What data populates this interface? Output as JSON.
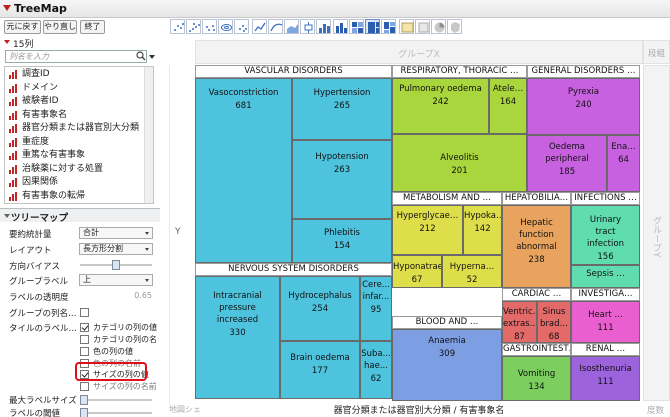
{
  "window": {
    "title": "TreeMap"
  },
  "toolbar": {
    "buttons": [
      "元に戻す",
      "やり直し",
      "終了"
    ]
  },
  "columns_panel": {
    "count_label": "15列",
    "filter_placeholder": "列名を入力",
    "items": [
      "調査ID",
      "ドメイン",
      "被験者ID",
      "有害事象名",
      "器官分類または器官別大分類",
      "重症度",
      "重篤な有害事象",
      "治験薬に対する処置",
      "因果関係",
      "有害事象の転帰"
    ]
  },
  "treemap_panel": {
    "title": "ツリーマップ",
    "summary_label": "要約統計量",
    "summary_value": "合計",
    "layout_label": "レイアウト",
    "layout_value": "長方形分割",
    "bias_label": "方向バイアス",
    "bias_level": 0.5,
    "group_label_label": "グループラベル",
    "group_label_value": "上",
    "transparency_label": "ラベルの透明度",
    "transparency_value": "0.65",
    "group_colname_label": "グループの列名…",
    "tile_label_label": "タイルのラベル…",
    "options": [
      {
        "label": "カテゴリの列の値",
        "checked": true
      },
      {
        "label": "カテゴリの列の名",
        "checked": false
      },
      {
        "label": "色の列の値",
        "checked": false
      },
      {
        "label": "色の列の名前",
        "checked": false
      },
      {
        "label": "サイズの列の値",
        "checked": true
      },
      {
        "label": "サイズの列の名前",
        "checked": false
      }
    ],
    "max_label_size_label": "最大ラベルサイズ",
    "label_threshold_label": "ラベルの閾値"
  },
  "graph": {
    "group_x_label": "グループX",
    "wrap_label": "段組",
    "y_label": "Y",
    "group_y_label": "グループY",
    "x_axis_label": "器官分類または器官別大分類 / 有害事象名",
    "freq_label": "度数",
    "map_label": "地図シェ"
  },
  "colors": {
    "vascular": "#4ec3de",
    "nervous": "#4ec3de",
    "respiratory": "#a9d63c",
    "general": "#c861e0",
    "metabolism": "#dede4a",
    "hepatobiliary": "#e8a35e",
    "infections": "#5fdcb0",
    "cardiac": "#e46a6a",
    "investigations": "#ea5fcf",
    "blood": "#7e9ee4",
    "renal": "#9d63dc",
    "gastrointestinal": "#7ccf5e"
  },
  "chart_data": {
    "type": "treemap",
    "groups": [
      {
        "name": "VASCULAR DISORDERS",
        "tiles": [
          {
            "name": "Vasoconstriction",
            "value": 681
          },
          {
            "name": "Hypertension",
            "value": 265
          },
          {
            "name": "Hypotension",
            "value": 263
          },
          {
            "name": "Phlebitis",
            "value": 154
          }
        ]
      },
      {
        "name": "NERVOUS SYSTEM DISORDERS",
        "tiles": [
          {
            "name": "Intracranial pressure increased",
            "value": 330
          },
          {
            "name": "Hydrocephalus",
            "value": 254
          },
          {
            "name": "Cere... infar...",
            "value": 95
          },
          {
            "name": "Brain oedema",
            "value": 177
          },
          {
            "name": "Suba... hae...",
            "value": 62
          }
        ]
      },
      {
        "name": "RESPIRATORY, THORACIC …",
        "tiles": [
          {
            "name": "Pulmonary oedema",
            "value": 242
          },
          {
            "name": "Atele…",
            "value": 164
          },
          {
            "name": "Alveolitis",
            "value": 201
          }
        ]
      },
      {
        "name": "GENERAL DISORDERS …",
        "tiles": [
          {
            "name": "Pyrexia",
            "value": 240
          },
          {
            "name": "Oedema peripheral",
            "value": 185
          },
          {
            "name": "Ena…",
            "value": 64
          }
        ]
      },
      {
        "name": "METABOLISM AND …",
        "tiles": [
          {
            "name": "Hyperglycae…",
            "value": 212
          },
          {
            "name": "Hypoka…",
            "value": 142
          },
          {
            "name": "Hyponatrae…",
            "value": 67
          },
          {
            "name": "Hyperna…",
            "value": 52
          }
        ]
      },
      {
        "name": "HEPATOBILIA…",
        "tiles": [
          {
            "name": "Hepatic function abnormal",
            "value": 238
          }
        ]
      },
      {
        "name": "INFECTIONS …",
        "tiles": [
          {
            "name": "Urinary tract infection",
            "value": 156
          },
          {
            "name": "Sepsis …",
            "value": null
          }
        ]
      },
      {
        "name": "CARDIAC …",
        "tiles": [
          {
            "name": "Ventric… extras…",
            "value": 87
          },
          {
            "name": "Sinus brad…",
            "value": 68
          }
        ]
      },
      {
        "name": "INVESTIGA…",
        "tiles": [
          {
            "name": "Heart …",
            "value": 111
          }
        ]
      },
      {
        "name": "BLOOD AND …",
        "tiles": [
          {
            "name": "Anaemia",
            "value": 309
          }
        ]
      },
      {
        "name": "RENAL …",
        "tiles": [
          {
            "name": "Isosthenuria",
            "value": 111
          }
        ]
      },
      {
        "name": "GASTROINTEST…",
        "tiles": [
          {
            "name": "Vomiting",
            "value": 134
          }
        ]
      }
    ]
  }
}
